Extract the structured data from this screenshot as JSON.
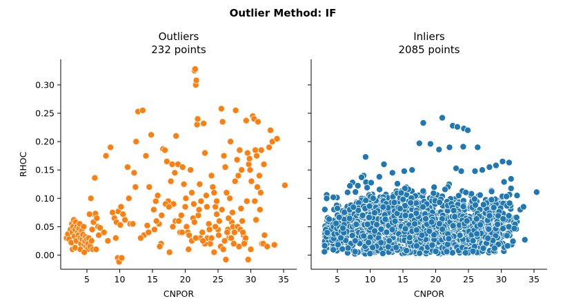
{
  "chart_data": {
    "type": "scatter",
    "title": "Outlier Method: IF",
    "panels": [
      {
        "title_line1": "Outliers",
        "title_line2": "232 points",
        "xlabel": "CNPOR",
        "ylabel": "RHOC",
        "xlim": [
          1,
          37
        ],
        "ylim": [
          -0.025,
          0.345
        ],
        "xticks": [
          5,
          10,
          15,
          20,
          25,
          30,
          35
        ],
        "yticks": [
          0.0,
          0.05,
          0.1,
          0.15,
          0.2,
          0.25,
          0.3
        ],
        "ytick_labels": [
          "0.00",
          "0.05",
          "0.10",
          "0.15",
          "0.20",
          "0.25",
          "0.30"
        ],
        "color": "#ff7f0e",
        "points": [
          [
            1.9,
            0.03
          ],
          [
            2.1,
            0.037
          ],
          [
            2.3,
            0.028
          ],
          [
            2.5,
            0.045
          ],
          [
            2.6,
            0.022
          ],
          [
            2.7,
            0.055
          ],
          [
            2.8,
            0.04
          ],
          [
            2.9,
            0.05
          ],
          [
            3.0,
            0.062
          ],
          [
            3.1,
            0.033
          ],
          [
            3.2,
            0.045
          ],
          [
            3.3,
            0.058
          ],
          [
            3.4,
            0.025
          ],
          [
            3.5,
            0.05
          ],
          [
            3.6,
            0.04
          ],
          [
            3.7,
            0.035
          ],
          [
            3.8,
            0.047
          ],
          [
            3.9,
            0.055
          ],
          [
            4.0,
            0.03
          ],
          [
            4.1,
            0.02
          ],
          [
            4.2,
            0.043
          ],
          [
            4.3,
            0.028
          ],
          [
            4.4,
            0.036
          ],
          [
            4.5,
            0.05
          ],
          [
            4.6,
            0.018
          ],
          [
            4.7,
            0.025
          ],
          [
            4.8,
            0.032
          ],
          [
            4.9,
            0.015
          ],
          [
            5.0,
            0.028
          ],
          [
            5.1,
            0.01
          ],
          [
            5.2,
            0.02
          ],
          [
            5.3,
            0.03
          ],
          [
            5.5,
            0.015
          ],
          [
            5.7,
            0.025
          ],
          [
            5.8,
            0.045
          ],
          [
            6.0,
            0.058
          ],
          [
            6.1,
            0.072
          ],
          [
            6.3,
            0.073
          ],
          [
            6.5,
            0.065
          ],
          [
            6.7,
            0.05
          ],
          [
            7.0,
            0.048
          ],
          [
            5.6,
            0.1
          ],
          [
            5.9,
            0.01
          ],
          [
            6.2,
            0.136
          ],
          [
            2.8,
            0.01
          ],
          [
            3.2,
            0.013
          ],
          [
            4.0,
            0.01
          ],
          [
            4.6,
            0.005
          ],
          [
            5.4,
            0.072
          ],
          [
            6.4,
            0.01
          ],
          [
            7.9,
            0.175
          ],
          [
            8.6,
            0.19
          ],
          [
            8.9,
            0.075
          ],
          [
            9.2,
            0.065
          ],
          [
            9.5,
            0.058
          ],
          [
            9.8,
            0.077
          ],
          [
            10.1,
            0.053
          ],
          [
            9.7,
            -0.005
          ],
          [
            9.9,
            -0.012
          ],
          [
            10.3,
            -0.005
          ],
          [
            10.5,
            0.072
          ],
          [
            10.8,
            0.062
          ],
          [
            11.2,
            0.155
          ],
          [
            11.6,
            0.055
          ],
          [
            12.0,
            0.055
          ],
          [
            12.2,
            0.145
          ],
          [
            12.5,
            0.2
          ],
          [
            12.8,
            0.253
          ],
          [
            13.5,
            0.255
          ],
          [
            13.7,
            0.035
          ],
          [
            14.0,
            0.175
          ],
          [
            14.2,
            0.052
          ],
          [
            14.5,
            0.12
          ],
          [
            14.8,
            0.212
          ],
          [
            15.2,
            0.08
          ],
          [
            15.5,
            0.095
          ],
          [
            15.8,
            0.105
          ],
          [
            16.0,
            0.055
          ],
          [
            16.3,
            0.02
          ],
          [
            16.6,
            0.187
          ],
          [
            16.9,
            0.185
          ],
          [
            17.2,
            0.165
          ],
          [
            17.4,
            0.095
          ],
          [
            17.6,
            0.005
          ],
          [
            17.8,
            0.13
          ],
          [
            18.0,
            0.16
          ],
          [
            18.2,
            0.09
          ],
          [
            18.4,
            0.145
          ],
          [
            18.6,
            0.21
          ],
          [
            18.9,
            0.16
          ],
          [
            19.2,
            0.04
          ],
          [
            19.4,
            0.07
          ],
          [
            19.6,
            0.155
          ],
          [
            19.8,
            0.125
          ],
          [
            20.0,
            0.085
          ],
          [
            20.2,
            0.05
          ],
          [
            20.4,
            0.04
          ],
          [
            20.6,
            0.035
          ],
          [
            20.8,
            0.15
          ],
          [
            21.0,
            0.11
          ],
          [
            21.2,
            0.065
          ],
          [
            21.4,
            0.058
          ],
          [
            21.6,
            0.3
          ],
          [
            21.8,
            0.23
          ],
          [
            21.4,
            0.325
          ],
          [
            21.5,
            0.328
          ],
          [
            21.7,
            0.308
          ],
          [
            21.9,
            0.24
          ],
          [
            22.0,
            0.07
          ],
          [
            22.2,
            0.125
          ],
          [
            22.4,
            0.095
          ],
          [
            22.6,
            0.04
          ],
          [
            22.8,
            0.232
          ],
          [
            23.0,
            0.18
          ],
          [
            23.2,
            0.105
          ],
          [
            23.4,
            0.03
          ],
          [
            23.6,
            0.055
          ],
          [
            23.8,
            0.02
          ],
          [
            24.0,
            0.14
          ],
          [
            24.2,
            0.12
          ],
          [
            24.4,
            0.11
          ],
          [
            24.6,
            0.085
          ],
          [
            24.8,
            0.072
          ],
          [
            25.0,
            0.045
          ],
          [
            25.2,
            0.06
          ],
          [
            25.4,
            0.015
          ],
          [
            25.5,
            0.258
          ],
          [
            25.7,
            0.235
          ],
          [
            25.9,
            0.175
          ],
          [
            26.1,
            0.155
          ],
          [
            26.3,
            0.11
          ],
          [
            26.5,
            0.045
          ],
          [
            26.7,
            0.03
          ],
          [
            26.9,
            0.2
          ],
          [
            27.1,
            0.058
          ],
          [
            27.3,
            0.05
          ],
          [
            27.5,
            0.04
          ],
          [
            27.7,
            0.255
          ],
          [
            27.9,
            0.168
          ],
          [
            28.1,
            0.14
          ],
          [
            28.3,
            0.185
          ],
          [
            28.5,
            0.082
          ],
          [
            28.7,
            0.06
          ],
          [
            28.9,
            0.035
          ],
          [
            29.1,
            0.025
          ],
          [
            29.3,
            0.237
          ],
          [
            29.5,
            0.18
          ],
          [
            29.7,
            0.16
          ],
          [
            29.9,
            0.15
          ],
          [
            30.1,
            0.13
          ],
          [
            30.3,
            0.245
          ],
          [
            30.5,
            0.24
          ],
          [
            30.7,
            0.185
          ],
          [
            30.9,
            0.175
          ],
          [
            31.1,
            0.235
          ],
          [
            31.3,
            0.14
          ],
          [
            31.5,
            0.11
          ],
          [
            31.7,
            0.02
          ],
          [
            31.9,
            0.02
          ],
          [
            32.1,
            0.035
          ],
          [
            32.5,
            0.015
          ],
          [
            33.0,
            0.22
          ],
          [
            33.3,
            0.2
          ],
          [
            33.6,
            0.018
          ],
          [
            34.0,
            0.205
          ],
          [
            35.2,
            0.123
          ],
          [
            30.0,
            0.01
          ],
          [
            29.6,
            -0.008
          ],
          [
            28.2,
            0.015
          ],
          [
            27.0,
            0.03
          ],
          [
            26.2,
            -0.008
          ],
          [
            25.8,
            0.01
          ],
          [
            24.4,
            0.005
          ],
          [
            23.0,
            0.02
          ],
          [
            22.3,
            0.03
          ],
          [
            21.0,
            0.025
          ],
          [
            20.5,
            0.01
          ],
          [
            19.5,
            0.04
          ],
          [
            18.5,
            0.06
          ],
          [
            17.0,
            0.09
          ],
          [
            16.1,
            0.015
          ],
          [
            15.3,
            0.045
          ],
          [
            26.0,
            0.025
          ],
          [
            26.4,
            0.04
          ],
          [
            27.4,
            0.02
          ],
          [
            28.0,
            0.05
          ],
          [
            28.4,
            0.045
          ],
          [
            28.8,
            0.04
          ],
          [
            29.2,
            0.03
          ],
          [
            29.0,
            0.02
          ],
          [
            24.0,
            0.03
          ],
          [
            24.6,
            0.05
          ],
          [
            25.1,
            0.035
          ],
          [
            23.7,
            0.045
          ],
          [
            22.7,
            0.025
          ],
          [
            21.6,
            0.03
          ],
          [
            26.8,
            0.1
          ],
          [
            27.6,
            0.13
          ],
          [
            28.6,
            0.15
          ],
          [
            29.8,
            0.17
          ],
          [
            30.6,
            0.095
          ],
          [
            31.0,
            0.12
          ],
          [
            32.0,
            0.16
          ],
          [
            32.8,
            0.19
          ],
          [
            31.6,
            0.185
          ],
          [
            24.8,
            0.095
          ],
          [
            23.3,
            0.085
          ],
          [
            22.1,
            0.08
          ],
          [
            21.3,
            0.09
          ],
          [
            20.1,
            0.1
          ],
          [
            19.0,
            0.06
          ],
          [
            18.1,
            0.05
          ],
          [
            17.5,
            0.085
          ],
          [
            16.4,
            0.07
          ],
          [
            15.6,
            0.06
          ],
          [
            14.4,
            0.04
          ],
          [
            13.2,
            0.03
          ],
          [
            12.4,
            0.12
          ],
          [
            11.4,
            0.1
          ],
          [
            10.2,
            0.085
          ],
          [
            9.4,
            0.03
          ],
          [
            8.2,
            0.025
          ],
          [
            7.6,
            0.04
          ],
          [
            6.8,
            0.035
          ],
          [
            30.8,
            0.062
          ],
          [
            31.4,
            0.08
          ],
          [
            29.4,
            0.095
          ],
          [
            27.2,
            0.075
          ],
          [
            26.6,
            0.065
          ],
          [
            25.6,
            0.08
          ]
        ]
      },
      {
        "title_line1": "Inliers",
        "title_line2": "2085 points",
        "xlabel": "CNPOR",
        "xlim": [
          1,
          37
        ],
        "ylim": [
          -0.025,
          0.345
        ],
        "xticks": [
          5,
          10,
          15,
          20,
          25,
          30,
          35
        ],
        "color": "#1f77b4",
        "points": [
          [
            9.3,
            0.173
          ],
          [
            18.1,
            0.233
          ],
          [
            21.0,
            0.242
          ],
          [
            22.6,
            0.228
          ],
          [
            23.3,
            0.226
          ],
          [
            24.3,
            0.223
          ],
          [
            24.9,
            0.22
          ],
          [
            20.5,
            0.186
          ],
          [
            17.5,
            0.197
          ],
          [
            19.2,
            0.196
          ],
          [
            22.1,
            0.19
          ],
          [
            24.2,
            0.191
          ],
          [
            26.4,
            0.19
          ],
          [
            35.4,
            0.111
          ],
          [
            33.6,
            0.027
          ],
          [
            32.9,
            0.08
          ],
          [
            33.4,
            0.085
          ],
          [
            31.2,
            0.163
          ],
          [
            30.2,
            0.165
          ],
          [
            29.2,
            0.158
          ],
          [
            28.2,
            0.155
          ],
          [
            27.1,
            0.15
          ],
          [
            26.0,
            0.148
          ],
          [
            25.4,
            0.105
          ],
          [
            23.9,
            0.148
          ],
          [
            23.1,
            0.153
          ],
          [
            12.1,
            0.16
          ],
          [
            13.4,
            0.145
          ],
          [
            15.2,
            0.148
          ],
          [
            16.4,
            0.15
          ],
          [
            9.0,
            0.14
          ],
          [
            7.3,
            0.128
          ],
          [
            6.9,
            0.122
          ],
          [
            8.7,
            0.137
          ],
          [
            11.4,
            0.138
          ]
        ]
      }
    ]
  }
}
